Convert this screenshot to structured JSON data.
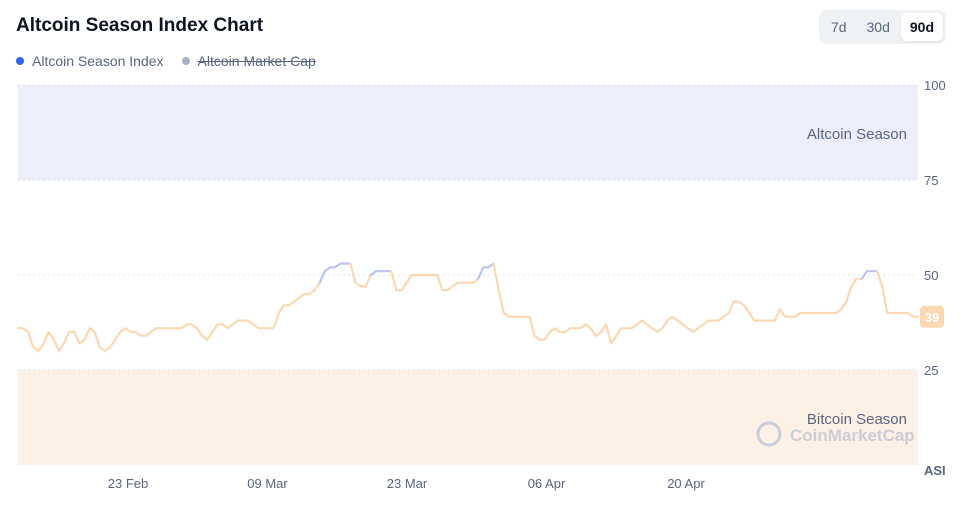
{
  "header": {
    "title": "Altcoin Season Index Chart",
    "ranges": [
      {
        "label": "7d",
        "active": false
      },
      {
        "label": "30d",
        "active": false
      },
      {
        "label": "90d",
        "active": true
      }
    ]
  },
  "legend": [
    {
      "label": "Altcoin Season Index",
      "color": "#3861fb",
      "enabled": true
    },
    {
      "label": "Altcoin Market Cap",
      "color": "#a6b0c3",
      "enabled": false
    }
  ],
  "colors": {
    "altcoin_zone": "#eceefc",
    "bitcoin_zone": "#fdf0e6",
    "line_neutral": "#fcd8b0",
    "line_alt": "#b9c6f3",
    "badge_bg": "#fcd8b0",
    "badge_text": "#ffffff"
  },
  "chart_data": {
    "type": "line",
    "y_axis_label": "ASI",
    "ylim": [
      0,
      100
    ],
    "y_ticks": [
      25,
      50,
      75,
      100
    ],
    "x_ticks": [
      "23 Feb",
      "09 Mar",
      "23 Mar",
      "06 Apr",
      "20 Apr"
    ],
    "zones": [
      {
        "label": "Altcoin Season",
        "from": 75,
        "to": 100
      },
      {
        "label": "Bitcoin Season",
        "from": 0,
        "to": 25
      }
    ],
    "current_value": "39",
    "watermark": "CoinMarketCap",
    "series": [
      {
        "values": [
          36,
          36,
          35,
          31,
          30,
          32,
          35,
          33,
          30,
          32,
          35,
          35,
          32,
          33,
          36,
          35,
          31,
          30,
          31,
          33,
          35,
          36,
          35,
          35,
          34,
          34,
          35,
          36,
          36,
          36,
          36,
          36,
          36,
          37,
          37,
          36,
          34,
          33,
          35,
          37,
          37,
          36,
          37,
          38,
          38,
          38,
          37,
          36,
          36,
          36,
          36,
          40,
          42,
          42,
          43,
          44,
          45,
          45,
          46,
          48,
          51,
          52,
          52,
          53,
          53,
          53,
          48,
          47,
          47,
          50,
          51,
          51,
          51,
          51,
          46,
          46,
          48,
          50,
          50,
          50,
          50,
          50,
          50,
          46,
          46,
          47,
          48,
          48,
          48,
          48,
          49,
          52,
          52,
          53,
          46,
          40,
          39,
          39,
          39,
          39,
          39,
          34,
          33,
          33,
          35,
          36,
          35,
          35,
          36,
          36,
          36,
          37,
          36,
          34,
          35,
          37,
          32,
          34,
          36,
          36,
          36,
          37,
          38,
          37,
          36,
          35,
          36,
          38,
          39,
          38,
          37,
          36,
          35,
          36,
          37,
          38,
          38,
          38,
          39,
          40,
          43,
          43,
          42,
          40,
          38,
          38,
          38,
          38,
          38,
          41,
          39,
          39,
          39,
          40,
          40,
          40,
          40,
          40,
          40,
          40,
          40,
          41,
          43,
          47,
          49,
          49,
          51,
          51,
          51,
          47,
          40,
          40,
          40,
          40,
          40,
          39,
          39
        ]
      }
    ]
  }
}
